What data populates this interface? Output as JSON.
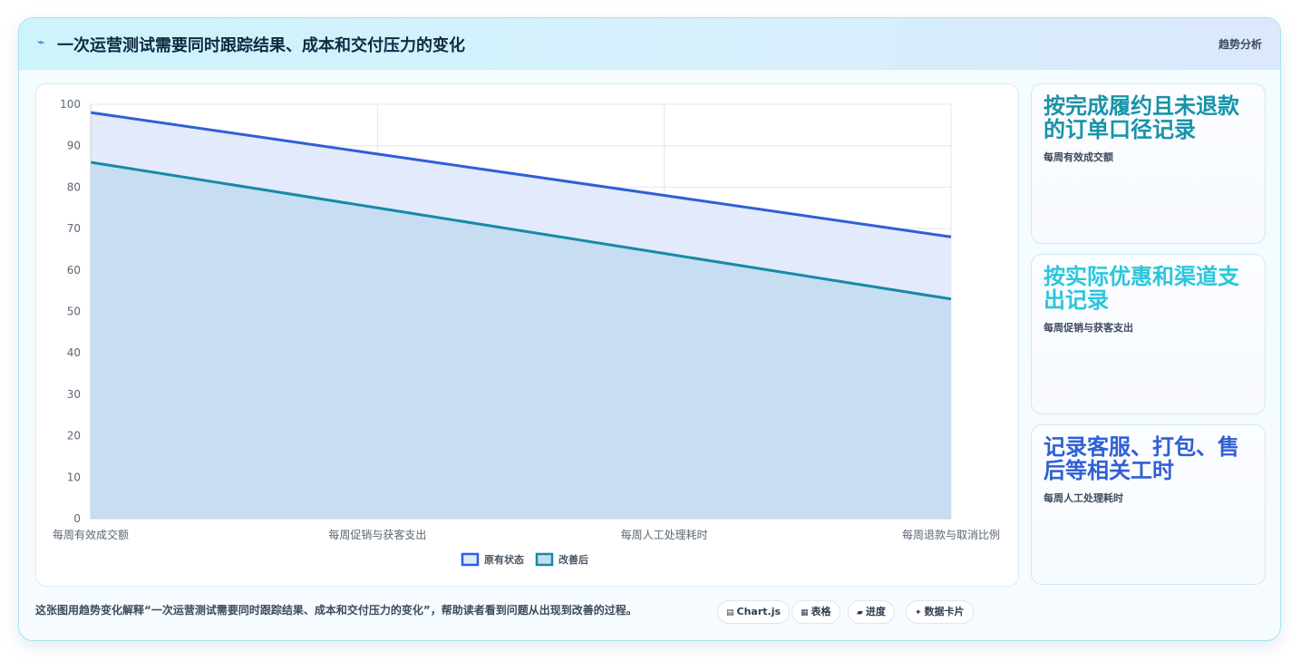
{
  "header": {
    "icon": "lightning-icon",
    "title": "一次运营测试需要同时跟踪结果、成本和交付压力的变化",
    "tag": "趋势分析"
  },
  "chart_data": {
    "type": "area",
    "categories": [
      "每周有效成交额",
      "每周促销与获客支出",
      "每周人工处理耗时",
      "每周退款与取消比例"
    ],
    "series": [
      {
        "name": "原有状态",
        "values": [
          98,
          88,
          78,
          68
        ],
        "color": "#2f5fd6",
        "fill": "#e0e8fb"
      },
      {
        "name": "改善后",
        "values": [
          86,
          75,
          64,
          53
        ],
        "color": "#168aa8",
        "fill": "#c4dcf1"
      }
    ],
    "ylim": [
      0,
      100
    ],
    "yticks": [
      0,
      10,
      20,
      30,
      40,
      50,
      60,
      70,
      80,
      90,
      100
    ],
    "grid": true,
    "legend": "bottom"
  },
  "cards": [
    {
      "title": "按完成履约且未退款的订单口径记录",
      "sub": "每周有效成交额",
      "color": "#1893a8"
    },
    {
      "title": "按实际优惠和渠道支出记录",
      "sub": "每周促销与获客支出",
      "color": "#2ac6dc"
    },
    {
      "title": "记录客服、打包、售后等相关工时",
      "sub": "每周人工处理耗时",
      "color": "#2f5fd6"
    }
  ],
  "footer": {
    "text": "这张图用趋势变化解释“一次运营测试需要同时跟踪结果、成本和交付压力的变化”，帮助读者看到问题从出现到改善的过程。",
    "chips": [
      {
        "icon": "chart-icon",
        "glyph": "▤",
        "label": "Chart.js"
      },
      {
        "icon": "table-icon",
        "glyph": "▦",
        "label": "表格"
      },
      {
        "icon": "progress-icon",
        "glyph": "▰",
        "label": "进度"
      },
      {
        "icon": "sparkle-icon",
        "glyph": "✦",
        "label": "数据卡片"
      }
    ]
  }
}
